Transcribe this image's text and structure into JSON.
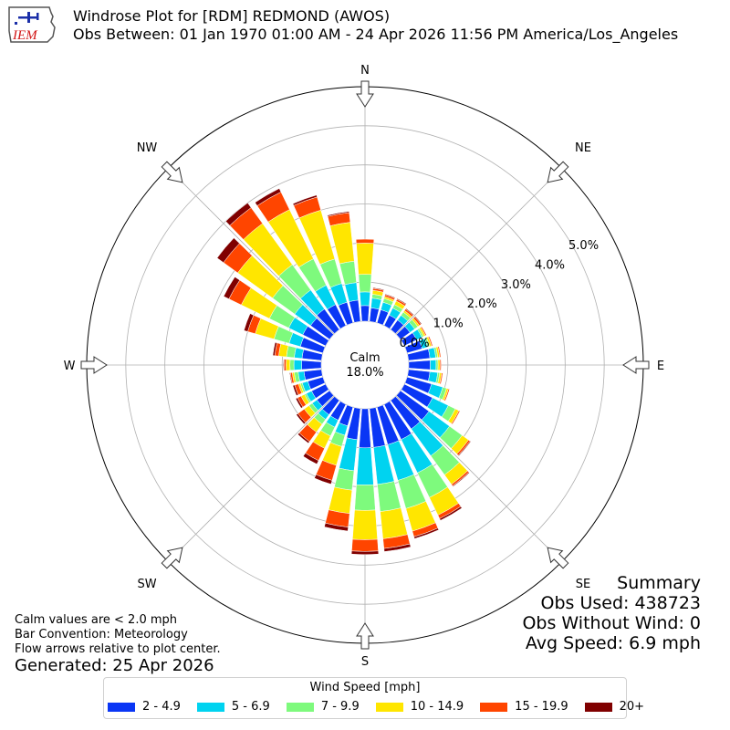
{
  "header": {
    "logo_text": "IEM",
    "title_line1": "Windrose Plot for [RDM] REDMOND (AWOS)",
    "title_line2": "Obs Between: 01 Jan 1970 01:00 AM - 24 Apr 2026 11:56 PM America/Los_Angeles"
  },
  "summary": {
    "heading": "Summary",
    "obs_used": "Obs Used: 438723",
    "obs_without_wind": "Obs Without Wind: 0",
    "avg_speed": "Avg Speed: 6.9 mph"
  },
  "notes": {
    "calm": "Calm values are < 2.0 mph",
    "bar_convention": "Bar Convention: Meteorology",
    "flow_arrows": "Flow arrows relative to plot center.",
    "generated": "Generated: 25 Apr 2026"
  },
  "legend": {
    "title": "Wind Speed [mph]",
    "items": [
      {
        "label": "2 - 4.9",
        "color": "#0a36f5"
      },
      {
        "label": "5 - 6.9",
        "color": "#00d3f0"
      },
      {
        "label": "7 - 9.9",
        "color": "#7efa7d"
      },
      {
        "label": "10 - 14.9",
        "color": "#ffe600"
      },
      {
        "label": "15 - 19.9",
        "color": "#ff4500"
      },
      {
        "label": "20+",
        "color": "#800000"
      }
    ]
  },
  "chart_data": {
    "type": "windrose",
    "calm_label": "Calm",
    "calm_value": "18.0%",
    "directions": [
      "N",
      "NE",
      "E",
      "SE",
      "S",
      "SW",
      "W",
      "NW"
    ],
    "radial_ticks": [
      "0.0%",
      "1.0%",
      "2.0%",
      "3.0%",
      "4.0%",
      "5.0%"
    ],
    "radial_max": 6.0,
    "sector_angles": [
      0,
      10,
      20,
      30,
      40,
      50,
      60,
      70,
      80,
      90,
      100,
      110,
      120,
      130,
      140,
      150,
      160,
      170,
      180,
      190,
      200,
      210,
      220,
      230,
      240,
      250,
      260,
      270,
      280,
      290,
      300,
      310,
      320,
      330,
      340,
      350
    ],
    "series": [
      {
        "name": "2 - 4.9",
        "color": "#0a36f5",
        "values": [
          0.4,
          0.35,
          0.35,
          0.3,
          0.3,
          0.3,
          0.35,
          0.4,
          0.55,
          0.55,
          0.55,
          0.65,
          0.8,
          0.9,
          0.9,
          1.0,
          1.0,
          1.0,
          1.0,
          0.8,
          0.5,
          0.45,
          0.45,
          0.4,
          0.4,
          0.4,
          0.45,
          0.5,
          0.5,
          0.6,
          0.65,
          0.6,
          0.65,
          0.6,
          0.55,
          0.55
        ]
      },
      {
        "name": "5 - 6.9",
        "color": "#00d3f0",
        "values": [
          0.35,
          0.25,
          0.2,
          0.2,
          0.15,
          0.15,
          0.15,
          0.15,
          0.15,
          0.15,
          0.2,
          0.3,
          0.45,
          0.65,
          0.85,
          0.95,
          0.95,
          0.95,
          0.95,
          0.8,
          0.25,
          0.2,
          0.15,
          0.15,
          0.15,
          0.15,
          0.15,
          0.2,
          0.2,
          0.3,
          0.4,
          0.5,
          0.6,
          0.55,
          0.5,
          0.45
        ]
      },
      {
        "name": "7 - 9.9",
        "color": "#7efa7d",
        "values": [
          0.45,
          0.1,
          0.1,
          0.1,
          0.1,
          0.1,
          0.05,
          0.05,
          0.05,
          0.05,
          0.05,
          0.1,
          0.2,
          0.4,
          0.6,
          0.7,
          0.75,
          0.7,
          0.65,
          0.5,
          0.3,
          0.25,
          0.15,
          0.1,
          0.05,
          0.05,
          0.1,
          0.1,
          0.2,
          0.4,
          0.55,
          0.7,
          0.8,
          0.75,
          0.65,
          0.55
        ]
      },
      {
        "name": "10 - 14.9",
        "color": "#ffe600",
        "values": [
          0.8,
          0.1,
          0.05,
          0.1,
          0.05,
          0.05,
          0.05,
          0.05,
          0.05,
          0.05,
          0.05,
          0.05,
          0.1,
          0.2,
          0.3,
          0.5,
          0.6,
          0.7,
          0.75,
          0.6,
          0.5,
          0.35,
          0.25,
          0.15,
          0.1,
          0.05,
          0.05,
          0.1,
          0.2,
          0.5,
          0.8,
          1.1,
          1.3,
          1.4,
          1.3,
          1.0
        ]
      },
      {
        "name": "15 - 19.9",
        "color": "#ff4500",
        "values": [
          0.1,
          0.05,
          0.05,
          0.05,
          0.05,
          0.05,
          0.03,
          0.03,
          0.03,
          0.03,
          0.03,
          0.03,
          0.03,
          0.05,
          0.05,
          0.1,
          0.15,
          0.25,
          0.3,
          0.35,
          0.4,
          0.35,
          0.3,
          0.2,
          0.1,
          0.1,
          0.05,
          0.05,
          0.1,
          0.2,
          0.35,
          0.45,
          0.5,
          0.5,
          0.35,
          0.25
        ]
      },
      {
        "name": "20+",
        "color": "#800000",
        "values": [
          0.0,
          0.02,
          0.02,
          0.02,
          0.02,
          0.02,
          0.0,
          0.0,
          0.0,
          0.0,
          0.0,
          0.0,
          0.0,
          0.02,
          0.02,
          0.05,
          0.05,
          0.08,
          0.08,
          0.1,
          0.1,
          0.1,
          0.05,
          0.05,
          0.05,
          0.05,
          0.02,
          0.02,
          0.05,
          0.1,
          0.15,
          0.2,
          0.15,
          0.1,
          0.05,
          0.03
        ]
      }
    ]
  }
}
